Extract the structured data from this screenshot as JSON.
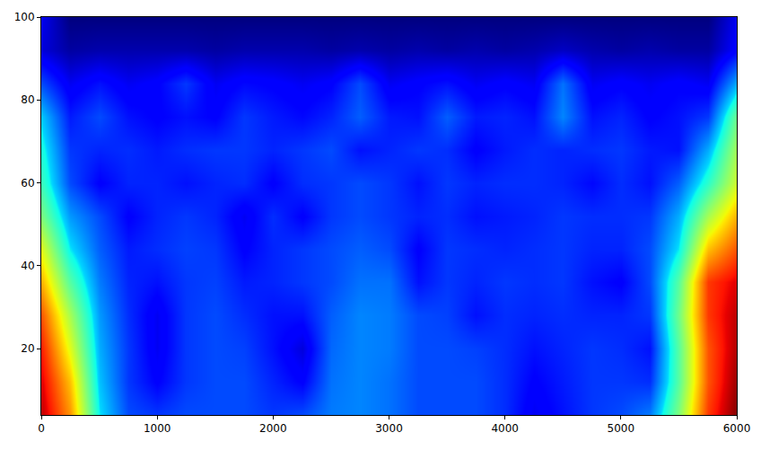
{
  "chart_data": {
    "type": "heatmap",
    "x": [
      0,
      250,
      500,
      750,
      1000,
      1250,
      1500,
      1750,
      2000,
      2250,
      2500,
      2750,
      3000,
      3250,
      3500,
      3750,
      4000,
      4250,
      4500,
      4750,
      5000,
      5250,
      5500,
      5750,
      6000
    ],
    "y": [
      4,
      12,
      20,
      28,
      36,
      44,
      52,
      60,
      68,
      76,
      84,
      92,
      100
    ],
    "cells": [
      [
        0.95,
        0.75,
        0.35,
        0.2,
        0.18,
        0.2,
        0.2,
        0.2,
        0.18,
        0.2,
        0.25,
        0.26,
        0.24,
        0.2,
        0.2,
        0.2,
        0.17,
        0.1,
        0.14,
        0.18,
        0.2,
        0.25,
        0.5,
        0.85,
        1.0
      ],
      [
        0.92,
        0.7,
        0.32,
        0.18,
        0.12,
        0.18,
        0.2,
        0.2,
        0.16,
        0.12,
        0.24,
        0.26,
        0.24,
        0.2,
        0.2,
        0.2,
        0.17,
        0.12,
        0.15,
        0.18,
        0.18,
        0.17,
        0.45,
        0.82,
        0.98
      ],
      [
        0.88,
        0.62,
        0.3,
        0.18,
        0.1,
        0.18,
        0.2,
        0.19,
        0.14,
        0.08,
        0.23,
        0.26,
        0.25,
        0.2,
        0.2,
        0.19,
        0.17,
        0.14,
        0.16,
        0.18,
        0.17,
        0.14,
        0.45,
        0.82,
        0.96
      ],
      [
        0.82,
        0.55,
        0.28,
        0.17,
        0.1,
        0.18,
        0.2,
        0.17,
        0.14,
        0.14,
        0.22,
        0.26,
        0.25,
        0.2,
        0.19,
        0.14,
        0.17,
        0.16,
        0.17,
        0.16,
        0.16,
        0.18,
        0.48,
        0.85,
        0.95
      ],
      [
        0.72,
        0.45,
        0.25,
        0.16,
        0.14,
        0.18,
        0.19,
        0.15,
        0.16,
        0.18,
        0.2,
        0.24,
        0.24,
        0.14,
        0.18,
        0.16,
        0.18,
        0.17,
        0.18,
        0.14,
        0.12,
        0.2,
        0.45,
        0.85,
        0.92
      ],
      [
        0.62,
        0.35,
        0.22,
        0.15,
        0.17,
        0.19,
        0.18,
        0.12,
        0.16,
        0.18,
        0.2,
        0.22,
        0.2,
        0.12,
        0.18,
        0.17,
        0.16,
        0.17,
        0.18,
        0.16,
        0.16,
        0.2,
        0.35,
        0.7,
        0.82
      ],
      [
        0.5,
        0.28,
        0.2,
        0.12,
        0.16,
        0.18,
        0.16,
        0.1,
        0.17,
        0.12,
        0.18,
        0.2,
        0.18,
        0.16,
        0.17,
        0.14,
        0.15,
        0.16,
        0.18,
        0.17,
        0.17,
        0.18,
        0.3,
        0.55,
        0.72
      ],
      [
        0.42,
        0.2,
        0.12,
        0.16,
        0.16,
        0.14,
        0.16,
        0.17,
        0.12,
        0.17,
        0.18,
        0.2,
        0.18,
        0.14,
        0.18,
        0.16,
        0.17,
        0.17,
        0.16,
        0.13,
        0.17,
        0.14,
        0.22,
        0.4,
        0.6
      ],
      [
        0.38,
        0.18,
        0.16,
        0.17,
        0.15,
        0.17,
        0.18,
        0.18,
        0.16,
        0.18,
        0.2,
        0.14,
        0.16,
        0.18,
        0.17,
        0.12,
        0.15,
        0.17,
        0.16,
        0.17,
        0.18,
        0.15,
        0.14,
        0.3,
        0.55
      ],
      [
        0.33,
        0.15,
        0.2,
        0.14,
        0.12,
        0.14,
        0.12,
        0.18,
        0.15,
        0.13,
        0.16,
        0.22,
        0.15,
        0.14,
        0.22,
        0.15,
        0.16,
        0.14,
        0.26,
        0.14,
        0.16,
        0.12,
        0.14,
        0.18,
        0.48
      ],
      [
        0.2,
        0.1,
        0.14,
        0.1,
        0.12,
        0.18,
        0.1,
        0.13,
        0.12,
        0.1,
        0.12,
        0.2,
        0.1,
        0.12,
        0.14,
        0.1,
        0.12,
        0.1,
        0.24,
        0.1,
        0.12,
        0.1,
        0.12,
        0.1,
        0.3
      ],
      [
        0.08,
        0.03,
        0.04,
        0.04,
        0.04,
        0.04,
        0.03,
        0.04,
        0.04,
        0.04,
        0.03,
        0.04,
        0.03,
        0.04,
        0.03,
        0.04,
        0.03,
        0.04,
        0.06,
        0.04,
        0.03,
        0.04,
        0.03,
        0.03,
        0.12
      ],
      [
        0.1,
        0,
        0,
        0,
        0,
        0,
        0,
        0,
        0,
        0,
        0,
        0,
        0,
        0,
        0,
        0,
        0,
        0,
        0,
        0,
        0,
        0,
        0,
        0,
        0.1
      ]
    ],
    "zlim": [
      0,
      1
    ],
    "xlim": [
      0,
      6000
    ],
    "ylim": [
      4,
      100
    ],
    "xticks": [
      0,
      1000,
      2000,
      3000,
      4000,
      5000,
      6000
    ],
    "yticks": [
      20,
      40,
      60,
      80,
      100
    ],
    "grid": false
  }
}
